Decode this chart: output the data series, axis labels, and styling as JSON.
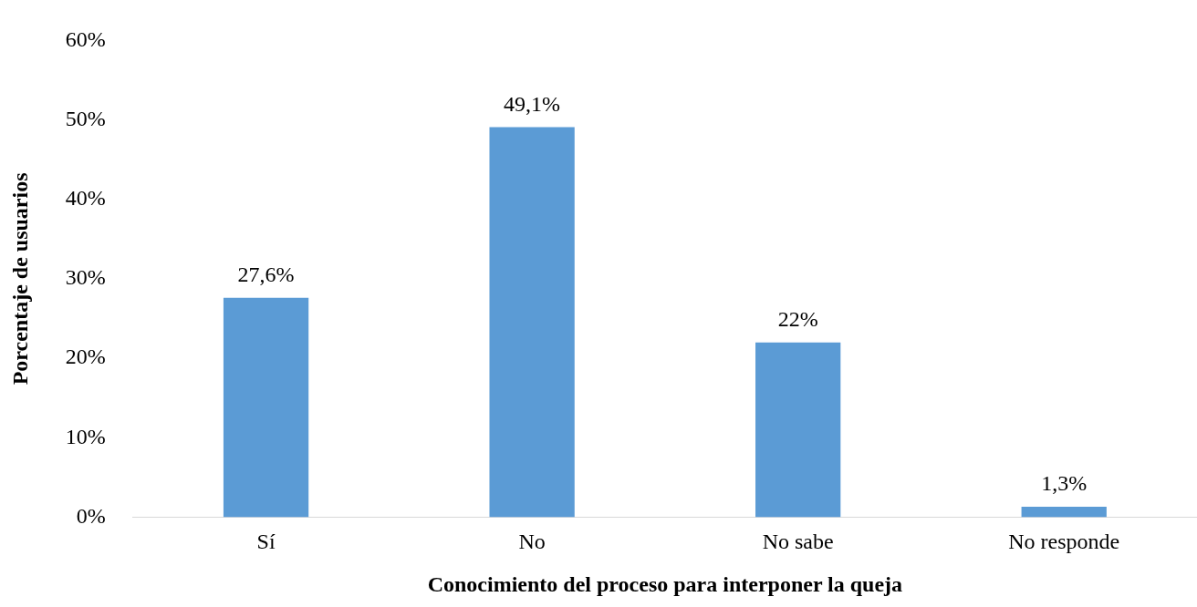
{
  "chart_data": {
    "type": "bar",
    "xlabel": "Conocimiento del proceso para interponer la queja",
    "ylabel": "Porcentaje de usuarios",
    "categories": [
      "Sí",
      "No",
      "No sabe",
      "No responde"
    ],
    "values": [
      27.6,
      49.1,
      22,
      1.3
    ],
    "value_labels": [
      "27,6%",
      "49,1%",
      "22%",
      "1,3%"
    ],
    "color": "#5b9bd5",
    "ylim": [
      0,
      60
    ],
    "yticks": [
      {
        "value": 0,
        "label": "0%"
      },
      {
        "value": 10,
        "label": "10%"
      },
      {
        "value": 20,
        "label": "20%"
      },
      {
        "value": 30,
        "label": "30%"
      },
      {
        "value": 40,
        "label": "40%"
      },
      {
        "value": 50,
        "label": "50%"
      },
      {
        "value": 60,
        "label": "60%"
      }
    ],
    "grid": false,
    "legend": false
  }
}
